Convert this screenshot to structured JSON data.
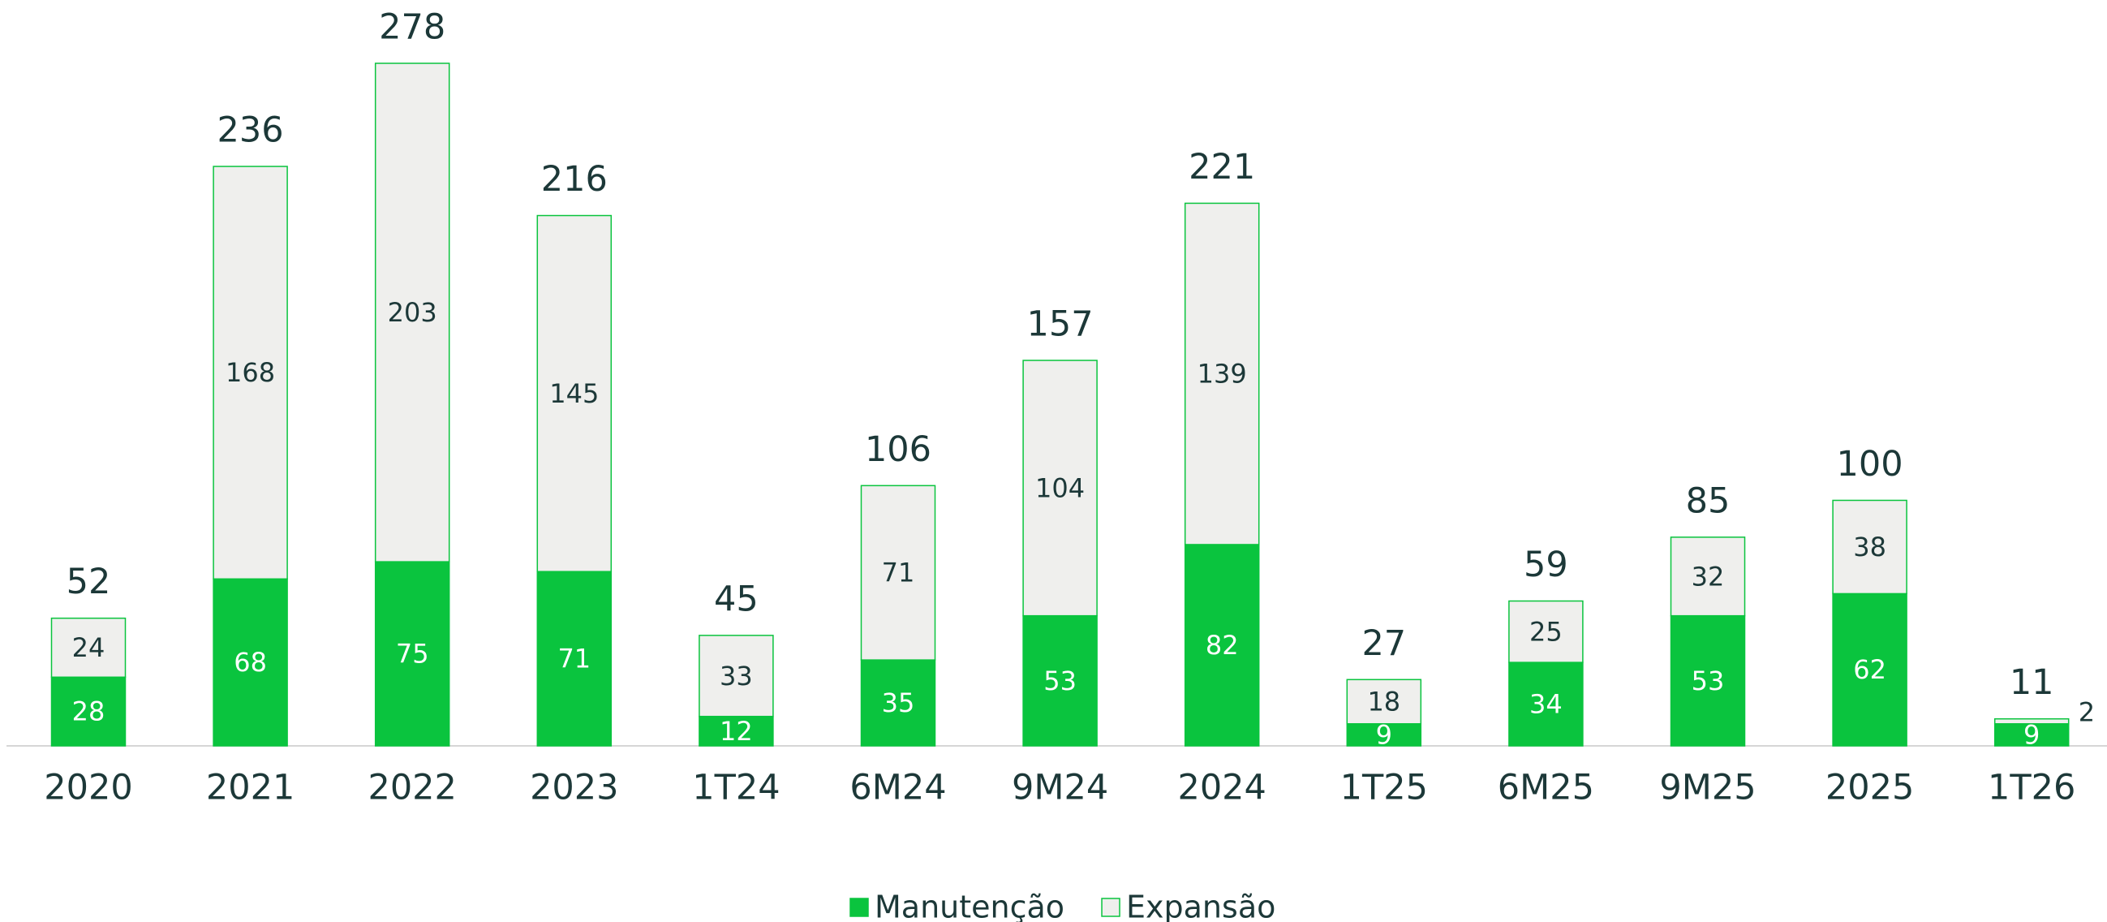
{
  "chart_data": {
    "type": "stacked_bar",
    "categories": [
      "2020",
      "2021",
      "2022",
      "2023",
      "1T24",
      "6M24",
      "9M24",
      "2024",
      "1T25",
      "6M25",
      "9M25",
      "2025",
      "1T26"
    ],
    "series": [
      {
        "name": "Manutenção",
        "color": "#0ac43e",
        "values": [
          28,
          68,
          75,
          71,
          12,
          35,
          53,
          82,
          9,
          34,
          53,
          62,
          9
        ]
      },
      {
        "name": "Expansão",
        "color": "#efefed",
        "values": [
          24,
          168,
          203,
          145,
          33,
          71,
          104,
          139,
          18,
          25,
          32,
          38,
          2
        ]
      }
    ],
    "totals": [
      52,
      236,
      278,
      216,
      45,
      106,
      157,
      221,
      27,
      59,
      85,
      100,
      11
    ],
    "legend": "bottom"
  }
}
